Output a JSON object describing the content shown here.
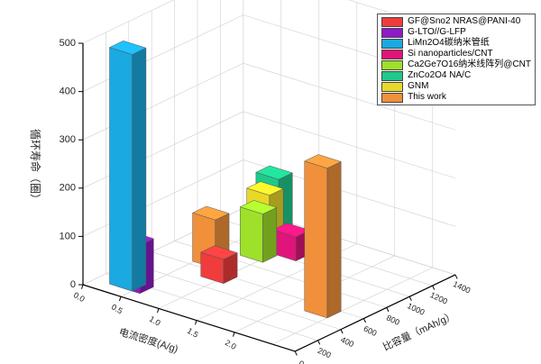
{
  "chart_data": {
    "type": "bar3d",
    "xlabel": "电流密度(A/g)",
    "ylabel": "比容量（mAh/g）",
    "zlabel": "循环寿命（圈）",
    "x_ticks": [
      "0.0",
      "0.5",
      "1.0",
      "1.5",
      "2.0"
    ],
    "y_ticks": [
      "0",
      "200",
      "400",
      "600",
      "800",
      "1000",
      "1200",
      "1400"
    ],
    "z_ticks": [
      "0",
      "100",
      "200",
      "300",
      "400",
      "500"
    ],
    "xlim": [
      0,
      2.8
    ],
    "ylim": [
      0,
      1400
    ],
    "zlim": [
      0,
      500
    ],
    "grid": true,
    "legend_position": "top-right",
    "series": [
      {
        "name": "GF@Sno2 NRAS@PANI-40",
        "color": "#f03c3c",
        "x": 0.8,
        "y": 500,
        "z": 50
      },
      {
        "name": "G-LTO//G-LFP",
        "color": "#8e1ac8",
        "x": 0.3,
        "y": 100,
        "z": 100
      },
      {
        "name": "LiMn2O4碳纳米管纸",
        "color": "#1aa9e0",
        "x": 0.2,
        "y": 100,
        "z": 490
      },
      {
        "name": "Si nanoparticles/CNT",
        "color": "#e0147a",
        "x": 1.0,
        "y": 1000,
        "z": 50
      },
      {
        "name": "Ca2Ge7O16纳米线阵列@CNT",
        "color": "#9ee02a",
        "x": 0.76,
        "y": 870,
        "z": 100
      },
      {
        "name": "ZnCo2O4 NA/C",
        "color": "#1ec98a",
        "x": 0.47,
        "y": 1200,
        "z": 120
      },
      {
        "name": "GNM",
        "color": "#e8d828",
        "x": 0.5,
        "y": 1100,
        "z": 100
      },
      {
        "name": "This work",
        "color": "#f0903a",
        "bars": [
          {
            "x": 0.48,
            "y": 640,
            "z": 100
          },
          {
            "x": 2.2,
            "y": 480,
            "z": 310
          }
        ]
      }
    ]
  }
}
